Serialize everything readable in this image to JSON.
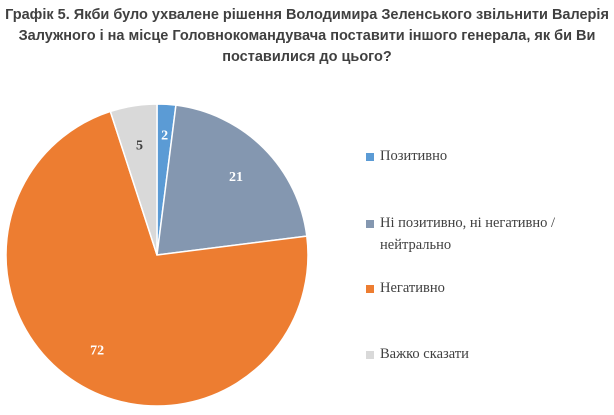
{
  "title_lines": [
    "Графік 5. Якби було ухвалене рішення Володимира Зеленського звільнити Валерія",
    "Залужного і на місце Головнокомандувача поставити іншого генерала, як би Ви",
    "поставилися до цього?"
  ],
  "chart_data": {
    "type": "pie",
    "title": "Графік 5. Якби було ухвалене рішення Володимира Зеленського звільнити Валерія Залужного і на місце Головнокомандувача поставити іншого генерала, як би Ви поставилися до цього?",
    "start_angle_deg": 0,
    "direction": "clockwise",
    "legend_position": "right",
    "slices": [
      {
        "label": "Позитивно",
        "value": 2,
        "color": "#5b9bd5",
        "label_color": "#ffffff"
      },
      {
        "label": "Ні позитивно, ні негативно / нейтрально",
        "value": 21,
        "color": "#8497b0",
        "label_color": "#ffffff"
      },
      {
        "label": "Негативно",
        "value": 72,
        "color": "#ed7d31",
        "label_color": "#ffffff"
      },
      {
        "label": "Важко сказати",
        "value": 5,
        "color": "#d9d9d9",
        "label_color": "#404040"
      }
    ]
  },
  "legend": {
    "items": [
      {
        "lines": [
          "Позитивно"
        ],
        "color": "#5b9bd5"
      },
      {
        "lines": [
          "Ні позитивно, ні негативно /",
          "нейтрально"
        ],
        "color": "#8497b0"
      },
      {
        "lines": [
          "Негативно"
        ],
        "color": "#ed7d31"
      },
      {
        "lines": [
          "Важко сказати"
        ],
        "color": "#d9d9d9"
      }
    ]
  }
}
